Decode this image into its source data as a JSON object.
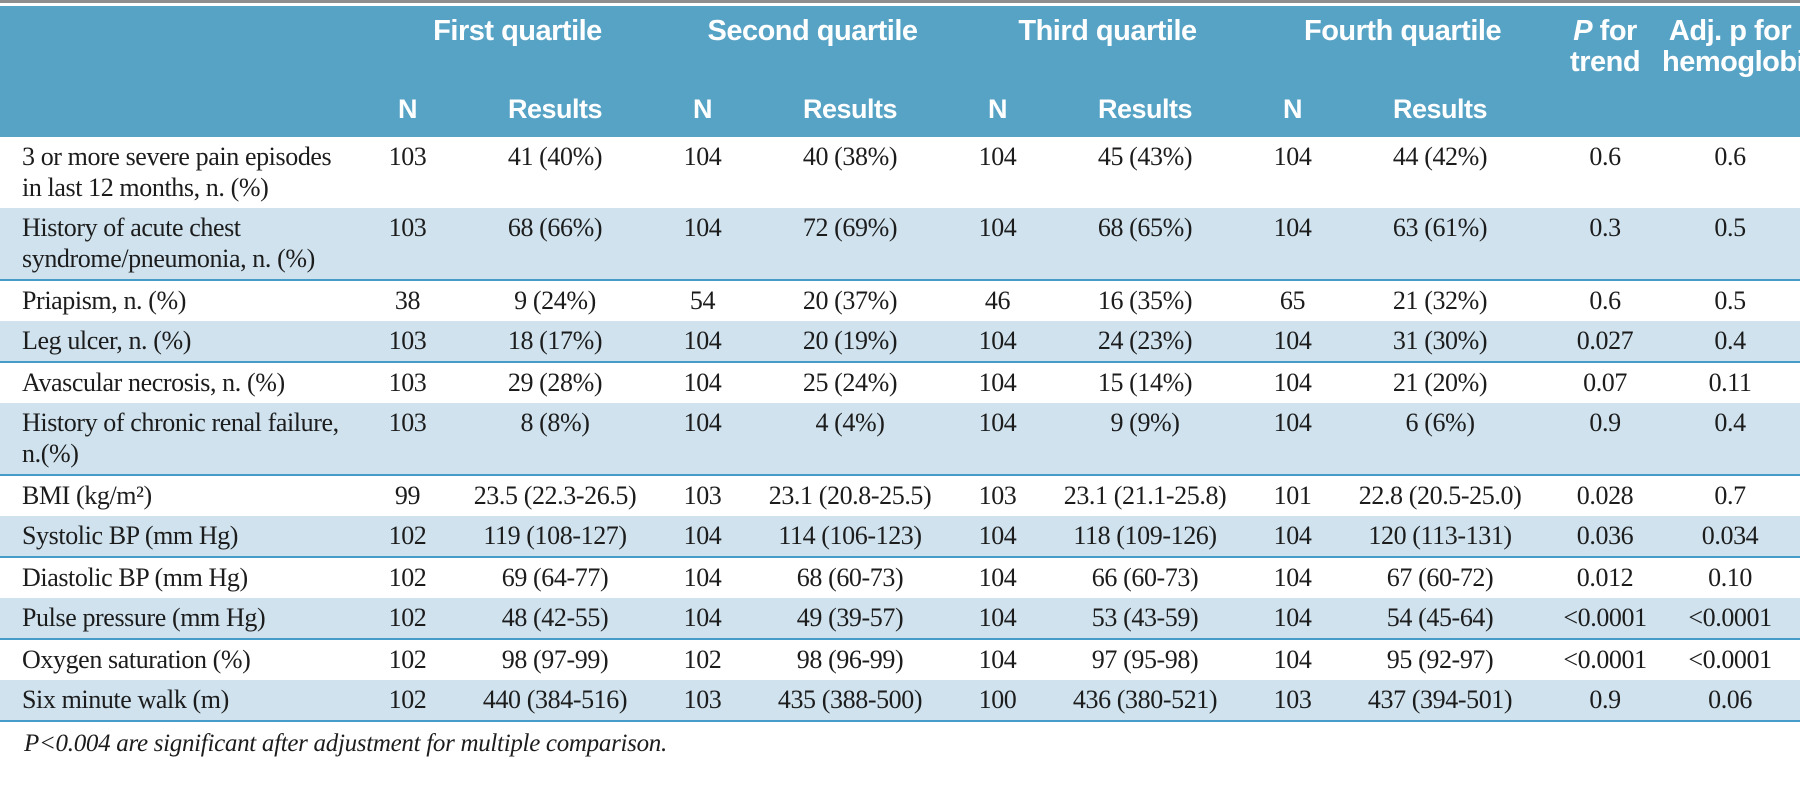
{
  "table": {
    "column_groups": [
      {
        "label": "First quartile"
      },
      {
        "label": "Second quartile"
      },
      {
        "label": "Third quartile"
      },
      {
        "label": "Fourth quartile"
      }
    ],
    "subheaders": {
      "n": "N",
      "results": "Results"
    },
    "p_trend_header": {
      "italic": "P",
      "rest": " for trend"
    },
    "adj_header": "Adj. p for hemoglobin",
    "rows": [
      {
        "label": "3 or more severe pain episodes in last 12 months, n. (%)",
        "q1_n": "103",
        "q1_r": "41 (40%)",
        "q2_n": "104",
        "q2_r": "40 (38%)",
        "q3_n": "104",
        "q3_r": "45 (43%)",
        "q4_n": "104",
        "q4_r": "44 (42%)",
        "p_trend": "0.6",
        "adj_p": "0.6"
      },
      {
        "label": "History of acute chest syndrome/pneumonia, n. (%)",
        "q1_n": "103",
        "q1_r": "68 (66%)",
        "q2_n": "104",
        "q2_r": "72 (69%)",
        "q3_n": "104",
        "q3_r": "68 (65%)",
        "q4_n": "104",
        "q4_r": "63 (61%)",
        "p_trend": "0.3",
        "adj_p": "0.5"
      },
      {
        "label": "Priapism, n. (%)",
        "q1_n": "38",
        "q1_r": "9 (24%)",
        "q2_n": "54",
        "q2_r": "20 (37%)",
        "q3_n": "46",
        "q3_r": "16 (35%)",
        "q4_n": "65",
        "q4_r": "21 (32%)",
        "p_trend": "0.6",
        "adj_p": "0.5"
      },
      {
        "label": "Leg ulcer, n. (%)",
        "q1_n": "103",
        "q1_r": "18 (17%)",
        "q2_n": "104",
        "q2_r": "20 (19%)",
        "q3_n": "104",
        "q3_r": "24 (23%)",
        "q4_n": "104",
        "q4_r": "31 (30%)",
        "p_trend": "0.027",
        "adj_p": "0.4"
      },
      {
        "label": "Avascular necrosis, n. (%)",
        "q1_n": "103",
        "q1_r": "29 (28%)",
        "q2_n": "104",
        "q2_r": "25 (24%)",
        "q3_n": "104",
        "q3_r": "15 (14%)",
        "q4_n": "104",
        "q4_r": "21 (20%)",
        "p_trend": "0.07",
        "adj_p": "0.11"
      },
      {
        "label": "History of chronic renal failure, n.(%)",
        "q1_n": "103",
        "q1_r": "8 (8%)",
        "q2_n": "104",
        "q2_r": "4 (4%)",
        "q3_n": "104",
        "q3_r": "9 (9%)",
        "q4_n": "104",
        "q4_r": "6 (6%)",
        "p_trend": "0.9",
        "adj_p": "0.4"
      },
      {
        "label": "BMI (kg/m²)",
        "q1_n": "99",
        "q1_r": "23.5 (22.3-26.5)",
        "q2_n": "103",
        "q2_r": "23.1 (20.8-25.5)",
        "q3_n": "103",
        "q3_r": "23.1 (21.1-25.8)",
        "q4_n": "101",
        "q4_r": "22.8 (20.5-25.0)",
        "p_trend": "0.028",
        "adj_p": "0.7"
      },
      {
        "label": "Systolic BP (mm Hg)",
        "q1_n": "102",
        "q1_r": "119 (108-127)",
        "q2_n": "104",
        "q2_r": "114 (106-123)",
        "q3_n": "104",
        "q3_r": "118 (109-126)",
        "q4_n": "104",
        "q4_r": "120 (113-131)",
        "p_trend": "0.036",
        "adj_p": "0.034"
      },
      {
        "label": "Diastolic BP (mm Hg)",
        "q1_n": "102",
        "q1_r": "69 (64-77)",
        "q2_n": "104",
        "q2_r": "68 (60-73)",
        "q3_n": "104",
        "q3_r": "66 (60-73)",
        "q4_n": "104",
        "q4_r": "67 (60-72)",
        "p_trend": "0.012",
        "adj_p": "0.10"
      },
      {
        "label": "Pulse pressure (mm Hg)",
        "q1_n": "102",
        "q1_r": "48 (42-55)",
        "q2_n": "104",
        "q2_r": "49 (39-57)",
        "q3_n": "104",
        "q3_r": "53 (43-59)",
        "q4_n": "104",
        "q4_r": "54 (45-64)",
        "p_trend": "<0.0001",
        "adj_p": "<0.0001"
      },
      {
        "label": "Oxygen saturation (%)",
        "q1_n": "102",
        "q1_r": "98 (97-99)",
        "q2_n": "102",
        "q2_r": "98 (96-99)",
        "q3_n": "104",
        "q3_r": "97 (95-98)",
        "q4_n": "104",
        "q4_r": "95 (92-97)",
        "p_trend": "<0.0001",
        "adj_p": "<0.0001"
      },
      {
        "label": "Six minute walk (m)",
        "q1_n": "102",
        "q1_r": "440 (384-516)",
        "q2_n": "103",
        "q2_r": "435 (388-500)",
        "q3_n": "100",
        "q3_r": "436 (380-521)",
        "q4_n": "103",
        "q4_r": "437 (394-501)",
        "p_trend": "0.9",
        "adj_p": "0.06"
      }
    ],
    "footnote": "P<0.004 are significant after adjustment for multiple comparison."
  },
  "colors": {
    "header_bg": "#57a3c6",
    "alt_row_bg": "#cfe2ee",
    "separator": "#459cc8",
    "top_rule": "#8e8e8e",
    "header_text": "#ffffff",
    "body_text": "#1c1c1c"
  }
}
